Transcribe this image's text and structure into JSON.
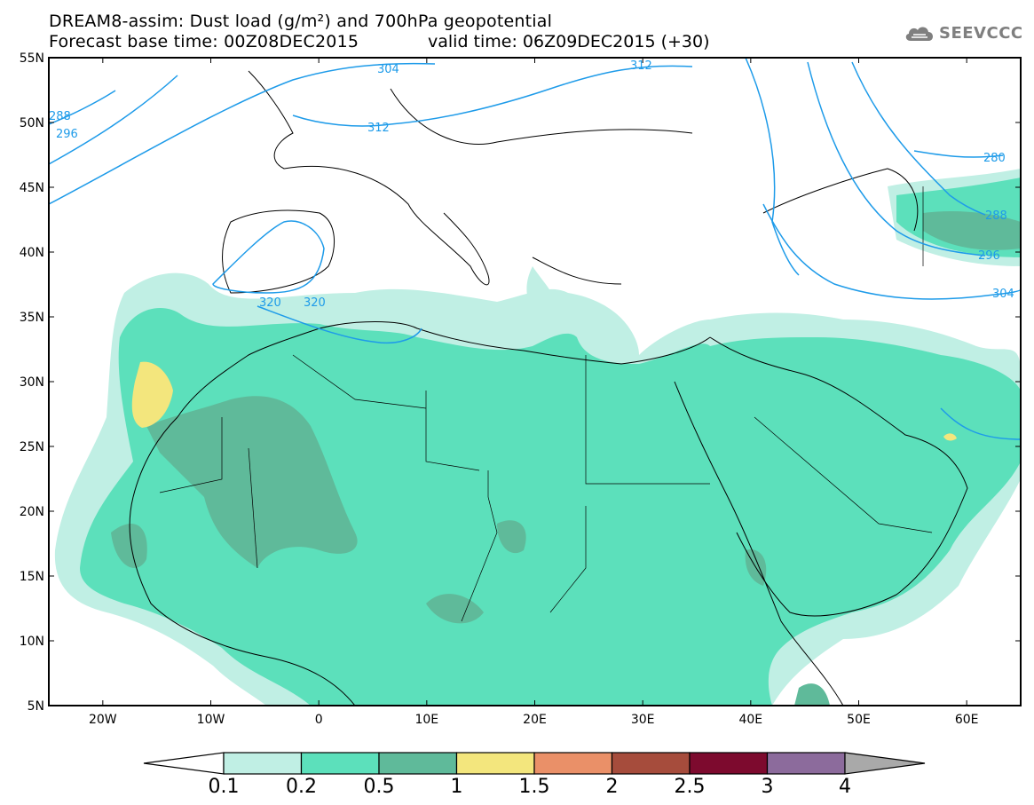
{
  "title": {
    "line1": "DREAM8-assim: Dust load (g/m²) and 700hPa geopotential",
    "line2_left": "Forecast base time: 00Z08DEC2015",
    "line2_right": "valid time: 06Z09DEC2015 (+30)"
  },
  "logo": {
    "text": "SEEVCCC",
    "icon": "cloud-icon"
  },
  "axes": {
    "lat_labels": [
      "55N",
      "50N",
      "45N",
      "40N",
      "35N",
      "30N",
      "25N",
      "20N",
      "15N",
      "10N",
      "5N"
    ],
    "lon_labels": [
      "20W",
      "10W",
      "0",
      "10E",
      "20E",
      "30E",
      "40E",
      "50E",
      "60E"
    ],
    "lon_range": [
      -25,
      65
    ],
    "lat_range": [
      5,
      55
    ]
  },
  "colorbar": {
    "ticks": [
      "0.1",
      "0.2",
      "0.5",
      "1",
      "1.5",
      "2",
      "2.5",
      "3",
      "4"
    ],
    "colors": [
      "#ffffff",
      "#c0efe4",
      "#5ce0bb",
      "#5fba9a",
      "#f3e67d",
      "#ea9068",
      "#a64c3c",
      "#7d0a2e",
      "#8c6b9c",
      "#a9a9a9"
    ]
  },
  "contours": {
    "line_color": "#1e9be9",
    "labels": [
      "304",
      "312",
      "288",
      "296",
      "312",
      "280",
      "288",
      "296",
      "304",
      "320",
      "320"
    ]
  }
}
